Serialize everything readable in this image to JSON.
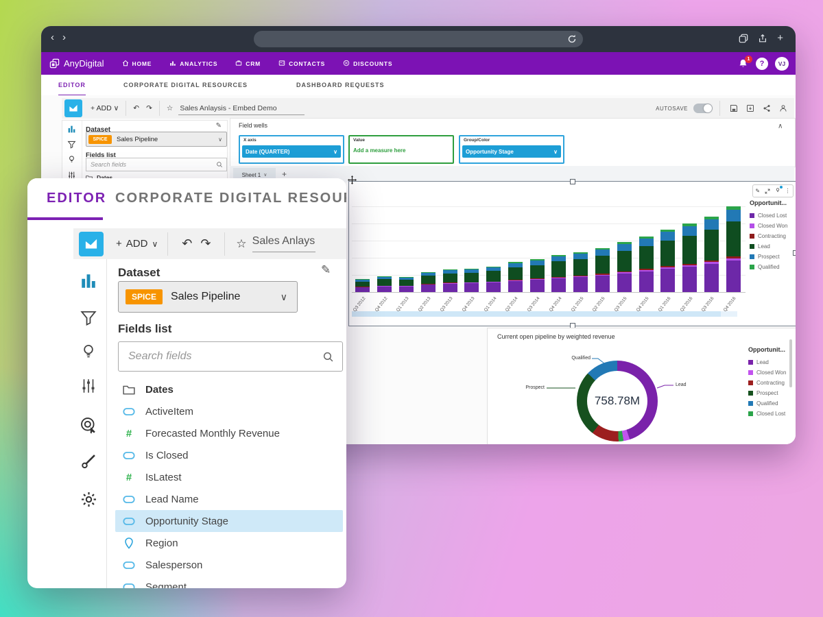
{
  "browser": {
    "back_icon": "‹",
    "forward_icon": "›",
    "url_value": "",
    "plus_icon": "+"
  },
  "app_nav": {
    "brand": "AnyDigital",
    "items": [
      {
        "label": "HOME",
        "icon": "home-icon"
      },
      {
        "label": "ANALYTICS",
        "icon": "analytics-icon"
      },
      {
        "label": "CRM",
        "icon": "crm-icon"
      },
      {
        "label": "CONTACTS",
        "icon": "contacts-icon"
      },
      {
        "label": "DISCOUNTS",
        "icon": "discounts-icon"
      }
    ],
    "notification_count": "1",
    "help_glyph": "?",
    "avatar_initials": "VJ"
  },
  "site_tabs": {
    "items": [
      "EDITOR",
      "CORPORATE DIGITAL RESOURCES",
      "DASHBOARD REQUESTS"
    ],
    "active": "EDITOR"
  },
  "toolbar": {
    "add_label": "ADD",
    "title": "Sales Anlaysis - Embed Demo",
    "autosave_label": "AUTOSAVE"
  },
  "dataset_panel": {
    "dataset_label": "Dataset",
    "spice_badge": "SPICE",
    "dataset_name": "Sales Pipeline",
    "fields_list_label": "Fields list",
    "search_placeholder": "Search fields",
    "fields": [
      {
        "name": "Dates",
        "type": "folder"
      },
      {
        "name": "ActiveItem",
        "type": "dimension"
      },
      {
        "name": "Forecasted Monthly Revenue",
        "type": "measure"
      },
      {
        "name": "Is Closed",
        "type": "dimension"
      },
      {
        "name": "IsLatest",
        "type": "measure"
      },
      {
        "name": "Lead Name",
        "type": "dimension"
      },
      {
        "name": "Opportunity Stage",
        "type": "dimension",
        "selected": true
      },
      {
        "name": "Region",
        "type": "geo"
      },
      {
        "name": "Salesperson",
        "type": "dimension"
      },
      {
        "name": "Segment",
        "type": "dimension"
      }
    ]
  },
  "field_wells": {
    "panel_label": "Field wells",
    "wells": [
      {
        "label": "X axis",
        "value": "Date (QUARTER)",
        "style": "pill"
      },
      {
        "label": "Value",
        "value": "Add a measure here",
        "style": "placeholder"
      },
      {
        "label": "Group/Color",
        "value": "Opportunity Stage",
        "style": "pill"
      }
    ]
  },
  "sheet": {
    "name": "Sheet 1",
    "add_icon": "+"
  },
  "chart_data": [
    {
      "type": "bar",
      "stacked": true,
      "legend_title": "Opportunit...",
      "legend_position": "right",
      "x_tick_rotation": -52,
      "ylim": [
        0,
        250
      ],
      "units": "millions",
      "categories": [
        "Q3 2012",
        "Q4 2012",
        "Q1 2013",
        "Q2 2013",
        "Q3 2013",
        "Q4 2013",
        "Q1 2014",
        "Q2 2014",
        "Q3 2014",
        "Q4 2014",
        "Q1 2015",
        "Q2 2015",
        "Q3 2015",
        "Q4 2015",
        "Q1 2016",
        "Q2 2016",
        "Q3 2016",
        "Q4 2016"
      ],
      "series": [
        {
          "name": "Closed Lost",
          "color": "#6d28a8",
          "values": [
            13.3,
            16.3,
            15.5,
            20.7,
            23.7,
            24.4,
            26.6,
            31.1,
            34.0,
            38.5,
            41.4,
            45.9,
            51.8,
            57.7,
            65.1,
            71.0,
            78.4,
            88.8
          ]
        },
        {
          "name": "Closed Won",
          "color": "#b44fe8",
          "values": [
            0.9,
            1.1,
            1.1,
            1.4,
            1.6,
            1.7,
            1.8,
            2.1,
            2.3,
            2.6,
            2.8,
            3.1,
            3.5,
            3.9,
            4.4,
            4.8,
            5.3,
            6.0
          ]
        },
        {
          "name": "Contracting",
          "color": "#8e1c1c",
          "values": [
            0.7,
            0.9,
            0.8,
            1.1,
            1.3,
            1.3,
            1.4,
            1.7,
            1.8,
            2.1,
            2.2,
            2.5,
            2.8,
            3.1,
            3.5,
            3.8,
            4.2,
            4.8
          ]
        },
        {
          "name": "Lead",
          "color": "#0f4d20",
          "values": [
            14.8,
            18.0,
            17.2,
            23.0,
            26.2,
            27.1,
            29.5,
            34.4,
            37.7,
            42.6,
            45.9,
            50.8,
            57.4,
            64.0,
            72.2,
            78.7,
            86.9,
            98.4
          ]
        },
        {
          "name": "Prospect",
          "color": "#2279b5",
          "values": [
            5.0,
            6.2,
            5.9,
            7.8,
            9.0,
            9.2,
            10.1,
            11.8,
            12.9,
            14.6,
            15.7,
            17.4,
            19.6,
            21.8,
            24.6,
            26.9,
            29.7,
            33.6
          ]
        },
        {
          "name": "Qualified",
          "color": "#2ba44a",
          "values": [
            1.3,
            1.5,
            1.5,
            2.0,
            2.2,
            2.3,
            2.5,
            2.9,
            3.2,
            3.6,
            3.9,
            4.3,
            4.9,
            5.5,
            6.2,
            6.7,
            7.4,
            8.4
          ]
        }
      ]
    },
    {
      "type": "pie",
      "title": "Current open pipeline by weighted revenue",
      "center_label": "758.78M",
      "legend_title": "Opportunit...",
      "legend_position": "right",
      "slices": [
        {
          "name": "Lead",
          "value": 341.5,
          "pct": 45.0,
          "color": "#7a22aa"
        },
        {
          "name": "Closed Won",
          "value": 19.0,
          "pct": 2.5,
          "color": "#c253ee"
        },
        {
          "name": "Closed Lost",
          "value": 15.2,
          "pct": 2.0,
          "color": "#2ba44a"
        },
        {
          "name": "Contracting",
          "value": 83.5,
          "pct": 11.0,
          "color": "#9c1f1f"
        },
        {
          "name": "Prospect",
          "value": 201.1,
          "pct": 26.5,
          "color": "#17511f"
        },
        {
          "name": "Qualified",
          "value": 98.5,
          "pct": 13.0,
          "color": "#2279b5"
        }
      ],
      "legend_order": [
        "Lead",
        "Closed Won",
        "Contracting",
        "Prospect",
        "Qualified",
        "Closed Lost"
      ],
      "callouts": [
        "Qualified",
        "Prospect",
        "Lead"
      ]
    }
  ]
}
